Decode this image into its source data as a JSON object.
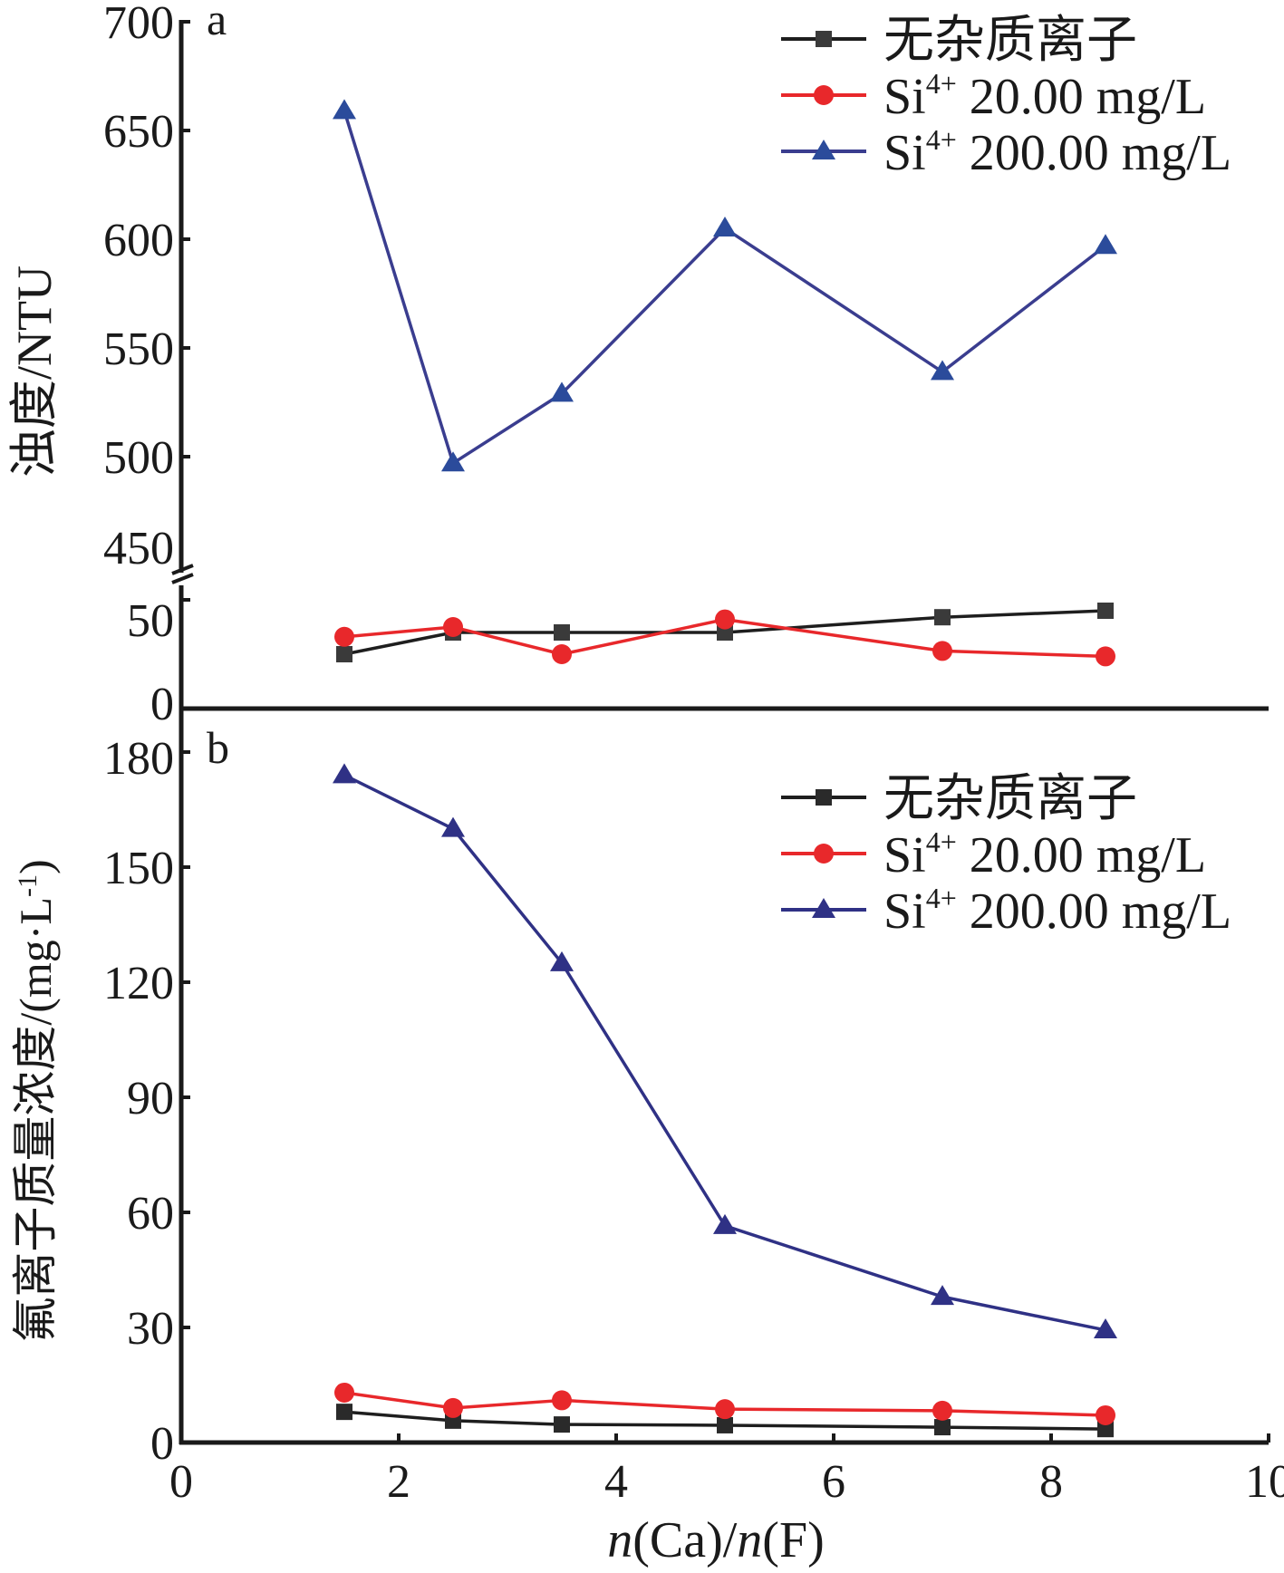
{
  "chart_data": [
    {
      "panel": "a",
      "type": "line",
      "ylabel": "浊度/NTU",
      "xlabel": "",
      "ylim": [
        0,
        700
      ],
      "axis_break": [
        50,
        450
      ],
      "yticks_lower": [
        0,
        50
      ],
      "yticks_upper": [
        450,
        500,
        550,
        600,
        650,
        700
      ],
      "xlim": [
        0,
        10
      ],
      "legend_position": "top-right",
      "x": [
        1.5,
        2.5,
        3.5,
        5.0,
        7.0,
        8.5
      ],
      "series": [
        {
          "name": "无杂质离子",
          "ion": "",
          "conc": "",
          "marker": "square",
          "color": "#1e1e1e",
          "marker_color": "#3a3a3a",
          "values": [
            25,
            35,
            35,
            35,
            42,
            45
          ]
        },
        {
          "name": "Si4+ 20.00 mg/L",
          "ion": "Si",
          "sup": "4+",
          "conc": "20.00 mg/L",
          "marker": "circle",
          "color": "#e8282b",
          "marker_color": "#e8282b",
          "values": [
            33,
            37.5,
            25,
            41,
            26.5,
            24
          ]
        },
        {
          "name": "Si4+ 200.00 mg/L",
          "ion": "Si",
          "sup": "4+",
          "conc": "200.00 mg/L",
          "marker": "triangle",
          "color": "#3a3d8f",
          "marker_color": "#2b4b9b",
          "values": [
            659,
            497,
            529,
            605,
            539,
            597
          ]
        }
      ]
    },
    {
      "panel": "b",
      "type": "line",
      "ylabel": "氟离子质量浓度/(mg·L",
      "ylabel_sup": "-1",
      "ylabel_close": ")",
      "xlabel_n1": "n",
      "xlabel_mid": "(Ca)/",
      "xlabel_n2": "n",
      "xlabel_end": "(F)",
      "ylim": [
        0,
        180
      ],
      "yticks": [
        0,
        30,
        60,
        90,
        120,
        150,
        180
      ],
      "xlim": [
        0,
        10
      ],
      "xticks": [
        0,
        2,
        4,
        6,
        8,
        10
      ],
      "legend_position": "top-right",
      "x": [
        1.5,
        2.5,
        3.5,
        5.0,
        7.0,
        8.5
      ],
      "series": [
        {
          "name": "无杂质离子",
          "ion": "",
          "conc": "",
          "marker": "square",
          "color": "#1e1e1e",
          "marker_color": "#2a2a2a",
          "values": [
            8,
            5.7,
            4.7,
            4.5,
            4.0,
            3.5
          ]
        },
        {
          "name": "Si4+ 20.00 mg/L",
          "ion": "Si",
          "sup": "4+",
          "conc": "20.00 mg/L",
          "marker": "circle",
          "color": "#e8282b",
          "marker_color": "#e8282b",
          "values": [
            13,
            9,
            11,
            8.7,
            8.3,
            7.1
          ]
        },
        {
          "name": "Si4+ 200.00 mg/L",
          "ion": "Si",
          "sup": "4+",
          "conc": "200.00 mg/L",
          "marker": "triangle",
          "color": "#2f3185",
          "marker_color": "#2f3185",
          "values": [
            174,
            160,
            125,
            56.5,
            38,
            29.3
          ]
        }
      ]
    }
  ]
}
